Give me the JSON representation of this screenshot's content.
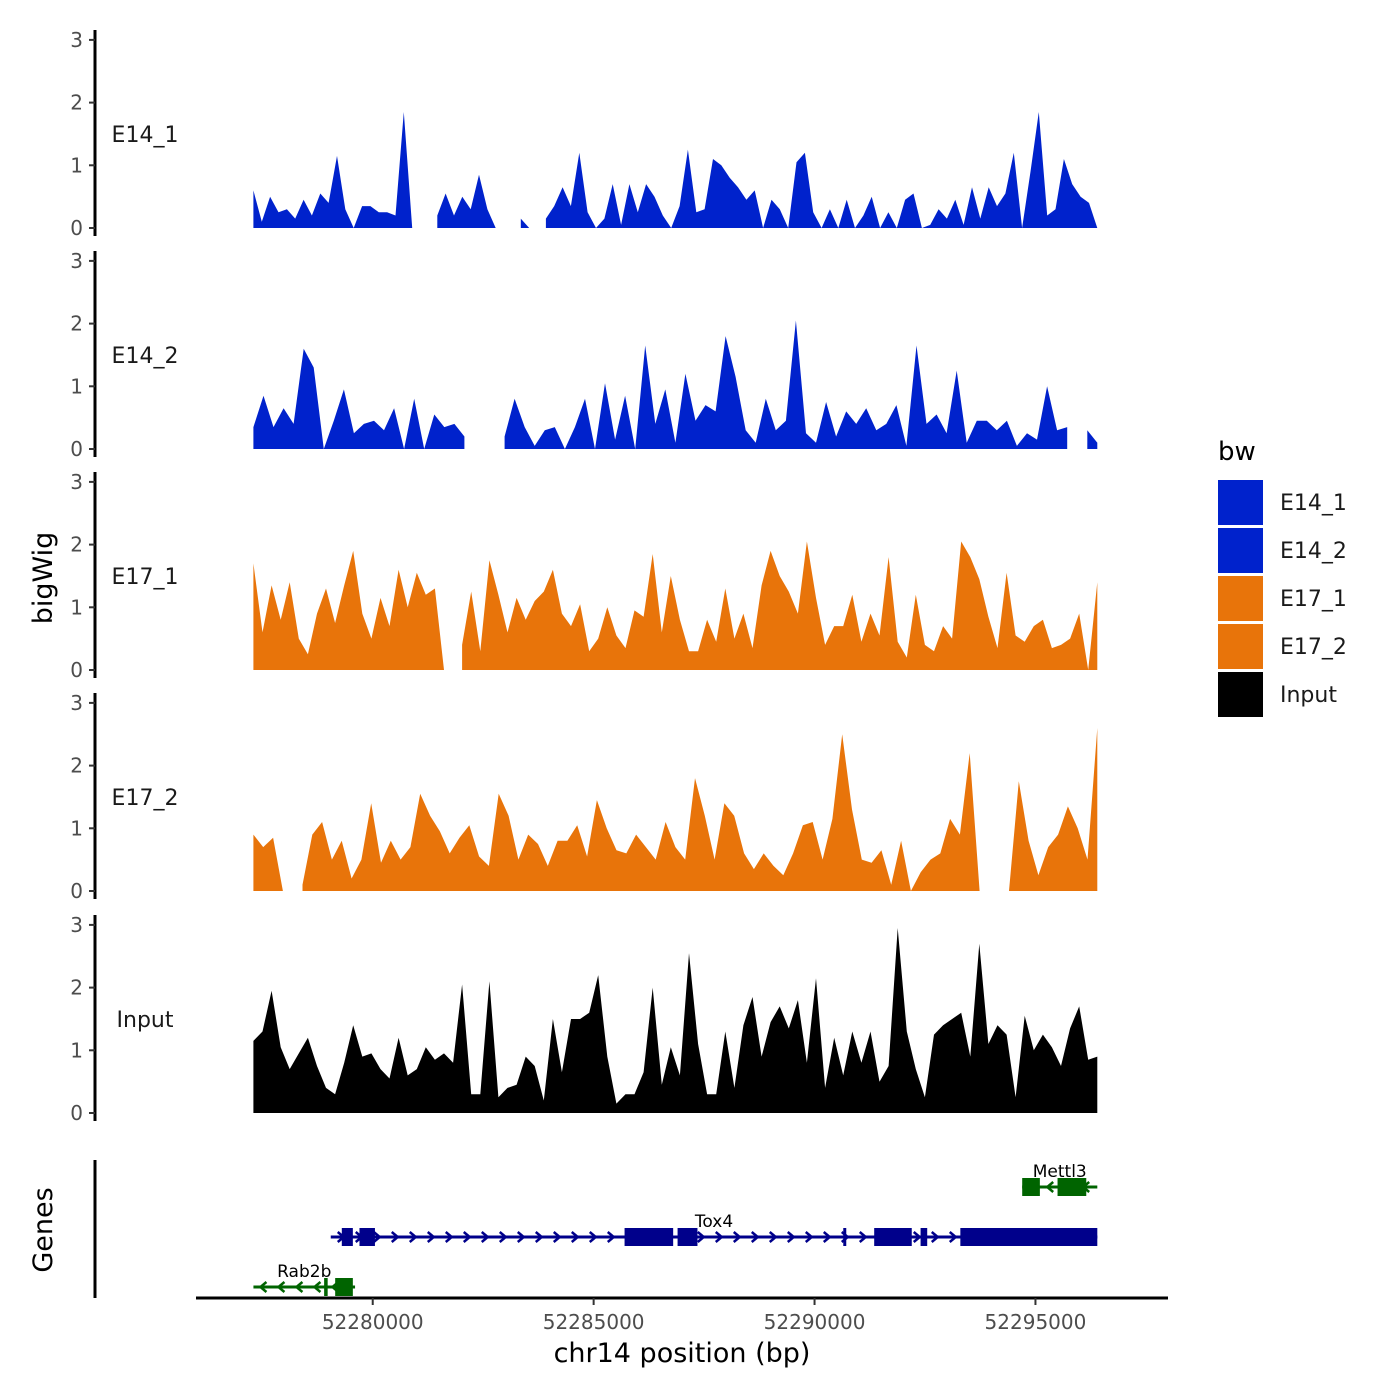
{
  "chart_data": {
    "type": "area",
    "title": "",
    "xlabel": "chr14 position (bp)",
    "ylabel": "bigWig",
    "genes_label": "Genes",
    "xlim": [
      52276000,
      52298000
    ],
    "ylim": [
      0,
      3
    ],
    "x_ticks": [
      52280000,
      52285000,
      52290000,
      52295000
    ],
    "x_tick_labels": [
      "52280000",
      "52285000",
      "52290000",
      "52295000"
    ],
    "y_ticks": [
      0,
      1,
      2,
      3
    ],
    "y_tick_labels": [
      "0",
      "1",
      "2",
      "3"
    ],
    "legend": {
      "title": "bw",
      "position": "right",
      "entries": [
        {
          "label": "E14_1",
          "color": "#0022cc"
        },
        {
          "label": "E14_2",
          "color": "#0022cc"
        },
        {
          "label": "E17_1",
          "color": "#e8740a"
        },
        {
          "label": "E17_2",
          "color": "#e8740a"
        },
        {
          "label": "Input",
          "color": "#000000"
        }
      ]
    },
    "region_start": 52277300,
    "region_end": 52296400,
    "series": [
      {
        "name": "E14_1",
        "color": "#0022cc",
        "values": [
          0.6,
          0.1,
          0.5,
          0.25,
          0.3,
          0.15,
          0.45,
          0.2,
          0.55,
          0.4,
          1.15,
          0.3,
          0.0,
          0.35,
          0.35,
          0.25,
          0.25,
          0.2,
          1.85,
          0.0,
          null,
          null,
          0.2,
          0.55,
          0.2,
          0.5,
          0.3,
          0.85,
          0.3,
          0.0,
          null,
          null,
          0.15,
          0.0,
          null,
          0.15,
          0.35,
          0.65,
          0.35,
          1.2,
          0.25,
          0.0,
          0.15,
          0.7,
          0.05,
          0.7,
          0.25,
          0.7,
          0.5,
          0.2,
          0.0,
          0.35,
          1.25,
          0.25,
          0.3,
          1.1,
          1.0,
          0.8,
          0.65,
          0.45,
          0.6,
          0.0,
          0.45,
          0.3,
          0.0,
          1.05,
          1.2,
          0.25,
          0.0,
          0.3,
          0.0,
          0.45,
          0.0,
          0.2,
          0.5,
          0.0,
          0.25,
          0.0,
          0.45,
          0.55,
          0.0,
          0.05,
          0.3,
          0.15,
          0.45,
          0.05,
          0.65,
          0.15,
          0.65,
          0.35,
          0.55,
          1.2,
          0.0,
          0.9,
          1.85,
          0.2,
          0.3,
          1.1,
          0.7,
          0.5,
          0.4,
          0.0
        ]
      },
      {
        "name": "E14_2",
        "color": "#0022cc",
        "values": [
          0.35,
          0.85,
          0.35,
          0.65,
          0.4,
          1.6,
          1.3,
          0.0,
          0.45,
          0.95,
          0.25,
          0.4,
          0.45,
          0.3,
          0.65,
          0.0,
          0.8,
          0.0,
          0.55,
          0.35,
          0.4,
          0.2,
          null,
          null,
          null,
          0.2,
          0.8,
          0.35,
          0.05,
          0.3,
          0.35,
          0.0,
          0.35,
          0.8,
          0.0,
          1.05,
          0.15,
          0.85,
          0.0,
          1.65,
          0.4,
          0.95,
          0.1,
          1.2,
          0.45,
          0.7,
          0.6,
          1.8,
          1.15,
          0.3,
          0.1,
          0.8,
          0.3,
          0.45,
          2.05,
          0.25,
          0.1,
          0.75,
          0.2,
          0.6,
          0.4,
          0.65,
          0.3,
          0.4,
          0.7,
          0.05,
          1.65,
          0.4,
          0.55,
          0.25,
          1.25,
          0.1,
          0.45,
          0.45,
          0.3,
          0.45,
          0.05,
          0.25,
          0.15,
          1.0,
          0.3,
          0.35,
          null,
          0.3,
          0.1
        ]
      },
      {
        "name": "E17_1",
        "color": "#e8740a",
        "values": [
          1.7,
          0.6,
          1.35,
          0.8,
          1.4,
          0.5,
          0.25,
          0.9,
          1.3,
          0.75,
          1.35,
          1.9,
          0.9,
          0.5,
          1.15,
          0.7,
          1.6,
          1.0,
          1.55,
          1.2,
          1.3,
          0.0,
          null,
          0.4,
          1.25,
          0.3,
          1.75,
          1.2,
          0.6,
          1.15,
          0.8,
          1.1,
          1.25,
          1.6,
          0.9,
          0.7,
          1.05,
          0.3,
          0.5,
          1.0,
          0.55,
          0.35,
          0.95,
          0.85,
          1.85,
          0.6,
          1.5,
          0.8,
          0.3,
          0.3,
          0.8,
          0.45,
          1.3,
          0.5,
          0.9,
          0.35,
          1.35,
          1.9,
          1.5,
          1.25,
          0.9,
          2.05,
          1.15,
          0.4,
          0.7,
          0.7,
          1.2,
          0.45,
          0.9,
          0.55,
          1.8,
          0.45,
          0.2,
          1.2,
          0.4,
          0.3,
          0.7,
          0.5,
          2.05,
          1.8,
          1.45,
          0.85,
          0.35,
          1.55,
          0.55,
          0.45,
          0.7,
          0.8,
          0.35,
          0.4,
          0.5,
          0.9,
          0.0,
          1.4
        ]
      },
      {
        "name": "E17_2",
        "color": "#e8740a",
        "values": [
          0.9,
          0.7,
          0.85,
          0.0,
          null,
          0.1,
          0.9,
          1.1,
          0.5,
          0.8,
          0.2,
          0.5,
          1.4,
          0.45,
          0.8,
          0.5,
          0.7,
          1.55,
          1.2,
          0.95,
          0.6,
          0.85,
          1.05,
          0.55,
          0.4,
          1.55,
          1.2,
          0.5,
          0.9,
          0.75,
          0.4,
          0.8,
          0.8,
          1.05,
          0.55,
          1.45,
          1.0,
          0.65,
          0.6,
          0.9,
          0.7,
          0.5,
          1.1,
          0.7,
          0.5,
          1.8,
          1.2,
          0.5,
          1.4,
          1.2,
          0.6,
          0.35,
          0.6,
          0.4,
          0.25,
          0.6,
          1.05,
          1.1,
          0.5,
          1.15,
          2.5,
          1.3,
          0.5,
          0.45,
          0.65,
          0.1,
          0.8,
          0.0,
          0.3,
          0.5,
          0.6,
          1.15,
          0.9,
          2.2,
          0.0,
          null,
          null,
          0.0,
          1.75,
          0.8,
          0.25,
          0.7,
          0.9,
          1.35,
          1.0,
          0.5,
          2.6
        ]
      },
      {
        "name": "Input",
        "color": "#000000",
        "values": [
          1.15,
          1.3,
          1.95,
          1.05,
          0.7,
          0.95,
          1.2,
          0.75,
          0.4,
          0.3,
          0.8,
          1.4,
          0.9,
          0.95,
          0.7,
          0.55,
          1.2,
          0.6,
          0.7,
          1.05,
          0.85,
          0.95,
          0.8,
          2.05,
          0.3,
          0.3,
          2.1,
          0.25,
          0.4,
          0.45,
          0.9,
          0.75,
          0.2,
          1.5,
          0.65,
          1.5,
          1.5,
          1.6,
          2.2,
          0.9,
          0.15,
          0.3,
          0.3,
          0.65,
          2.0,
          0.45,
          1.05,
          0.6,
          2.55,
          1.1,
          0.3,
          0.3,
          1.3,
          0.4,
          1.4,
          1.85,
          0.9,
          1.45,
          1.7,
          1.35,
          1.8,
          0.8,
          2.15,
          0.4,
          1.2,
          0.6,
          1.3,
          0.8,
          1.3,
          0.5,
          0.75,
          2.95,
          1.3,
          0.7,
          0.25,
          1.25,
          1.4,
          1.5,
          1.6,
          0.9,
          2.7,
          1.1,
          1.4,
          1.25,
          0.25,
          1.55,
          1.0,
          1.25,
          1.05,
          0.75,
          1.35,
          1.7,
          0.85,
          0.9
        ]
      }
    ],
    "genes": [
      {
        "name": "Mettl3",
        "start": 52294700,
        "end": 52296400,
        "strand": "-",
        "row": 3,
        "color": "#006400",
        "exons": [
          [
            52294700,
            52295100
          ],
          [
            52295500,
            52296150
          ]
        ]
      },
      {
        "name": "Tox4",
        "start": 52279050,
        "end": 52296400,
        "strand": "+",
        "row": 2,
        "color": "#00008b",
        "exons": [
          [
            52279300,
            52279550
          ],
          [
            52279700,
            52280050
          ],
          [
            52285700,
            52286800
          ],
          [
            52286900,
            52287350
          ],
          [
            52290650,
            52290700
          ],
          [
            52291350,
            52292200
          ],
          [
            52292400,
            52292550
          ],
          [
            52293300,
            52296400
          ]
        ]
      },
      {
        "name": "Rab2b",
        "start": 52277300,
        "end": 52279600,
        "strand": "-",
        "row": 1,
        "color": "#006400",
        "exons": [
          [
            52278900,
            52278980
          ],
          [
            52279150,
            52279550
          ]
        ]
      }
    ]
  }
}
